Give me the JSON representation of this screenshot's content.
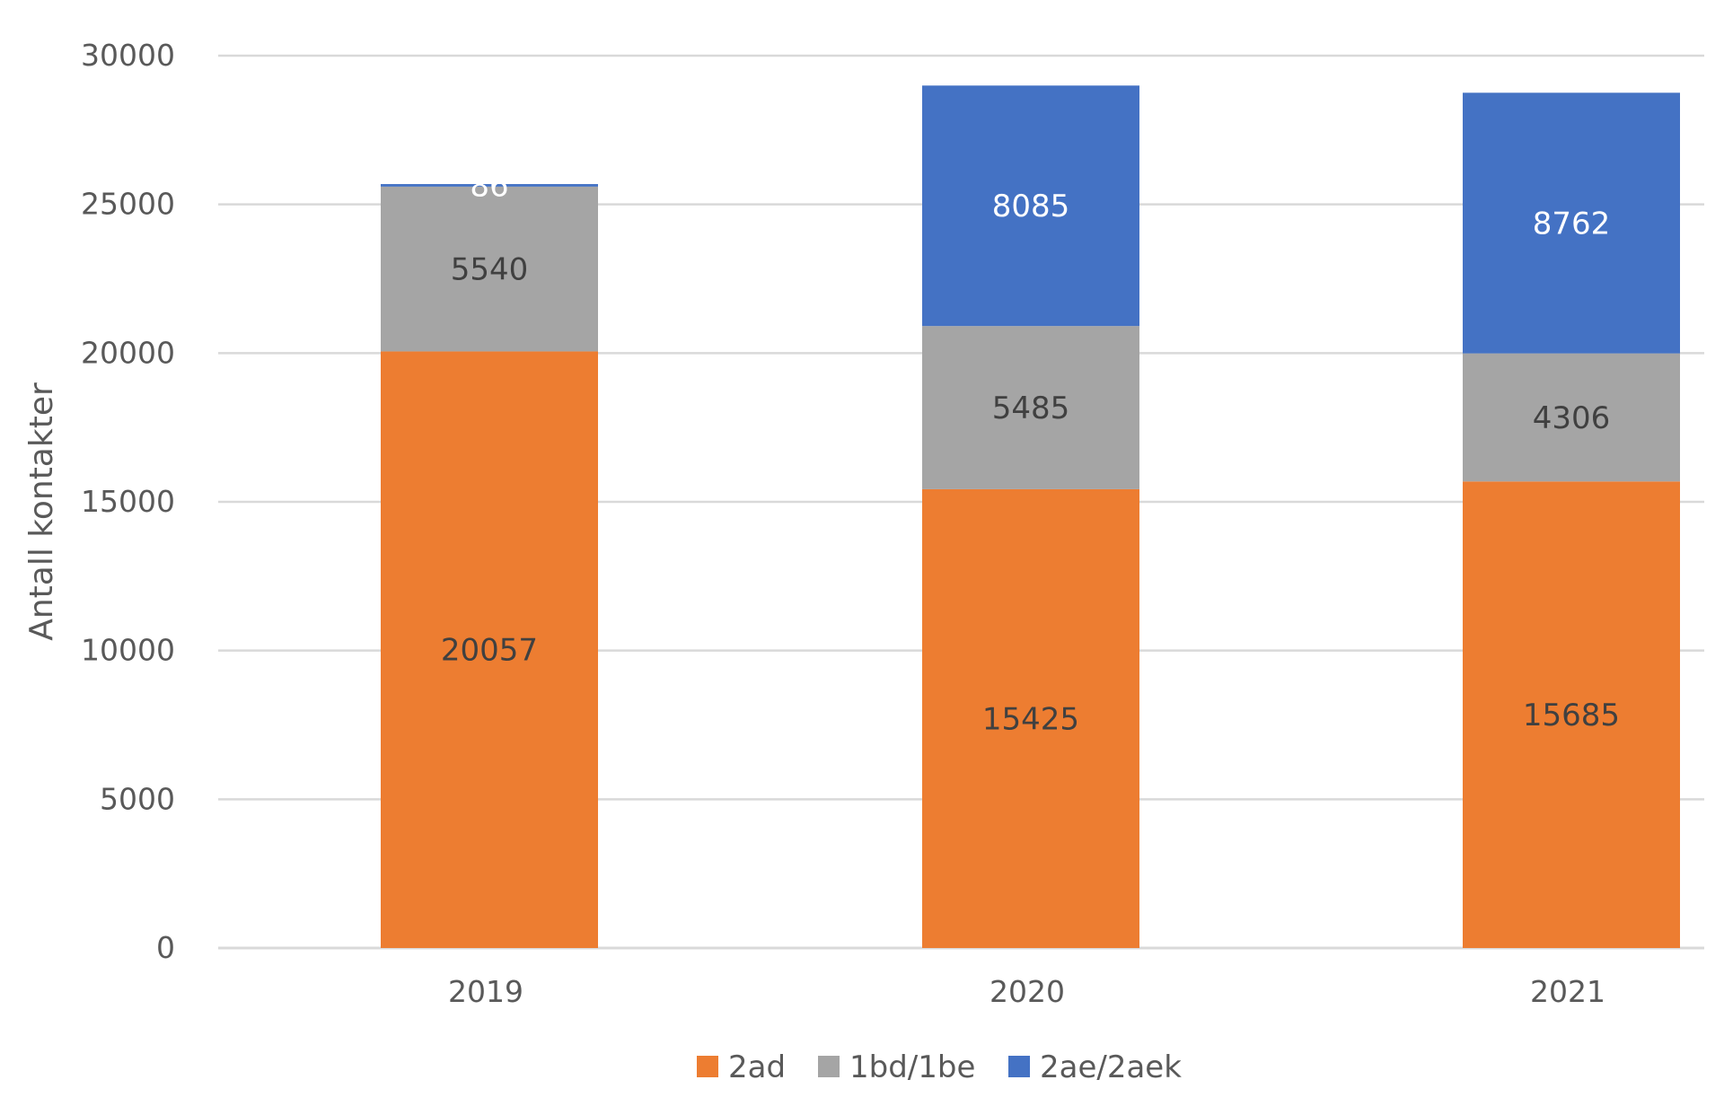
{
  "chart_data": {
    "type": "bar",
    "stacked": true,
    "title": "",
    "xlabel": "",
    "ylabel": "Antall kontakter",
    "ylim": [
      0,
      30000
    ],
    "yticks": [
      0,
      5000,
      10000,
      15000,
      20000,
      25000,
      30000
    ],
    "categories": [
      "2019",
      "2020",
      "2021"
    ],
    "series": [
      {
        "name": "2ad",
        "color": "#ED7D31",
        "label_color": "#404040",
        "values": [
          20057,
          15425,
          15685
        ]
      },
      {
        "name": "1bd/1be",
        "color": "#A5A5A5",
        "label_color": "#404040",
        "values": [
          5540,
          5485,
          4306
        ]
      },
      {
        "name": "2ae/2aek",
        "color": "#4472C4",
        "label_color": "#FFFFFF",
        "values": [
          86,
          8085,
          8762
        ]
      }
    ],
    "grid": true,
    "gridline_color": "#D9D9D9",
    "legend_position": "bottom"
  }
}
